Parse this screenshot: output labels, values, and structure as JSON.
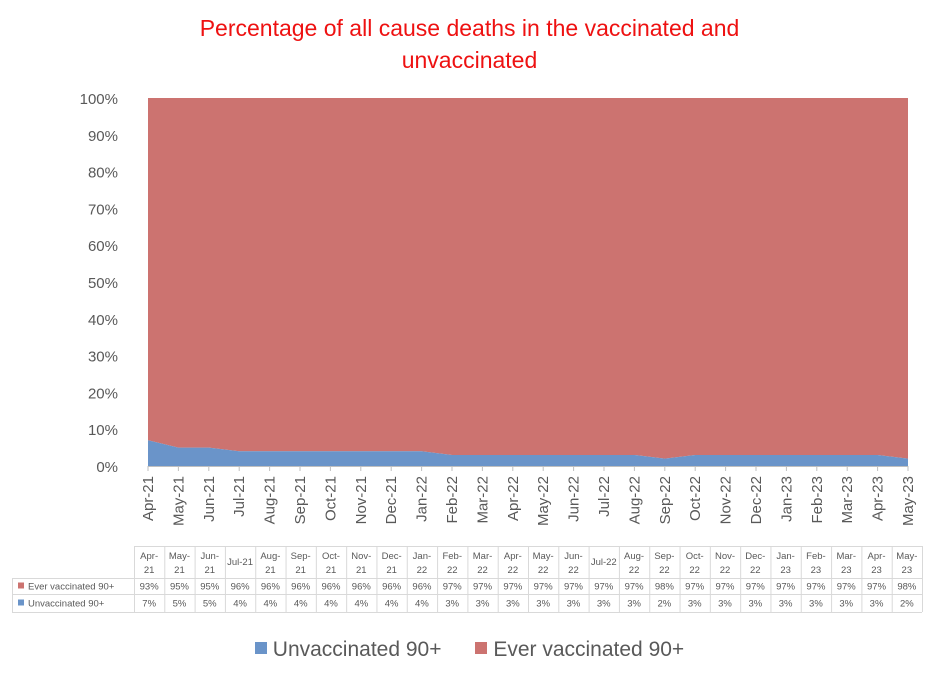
{
  "chart_data": {
    "type": "area",
    "stacked": true,
    "percent": true,
    "title": "Percentage of all cause deaths in the vaccinated and unvaccinated",
    "ylim": [
      0,
      100
    ],
    "y_ticks": [
      "0%",
      "10%",
      "20%",
      "30%",
      "40%",
      "50%",
      "60%",
      "70%",
      "80%",
      "90%",
      "100%"
    ],
    "categories": [
      "Apr-21",
      "May-21",
      "Jun-21",
      "Jul-21",
      "Aug-21",
      "Sep-21",
      "Oct-21",
      "Nov-21",
      "Dec-21",
      "Jan-22",
      "Feb-22",
      "Mar-22",
      "Apr-22",
      "May-22",
      "Jun-22",
      "Jul-22",
      "Aug-22",
      "Sep-22",
      "Oct-22",
      "Nov-22",
      "Dec-22",
      "Jan-23",
      "Feb-23",
      "Mar-23",
      "Apr-23",
      "May-23"
    ],
    "series": [
      {
        "name": "Unvaccinated 90+",
        "color": "#6a94c9",
        "values": [
          7,
          5,
          5,
          4,
          4,
          4,
          4,
          4,
          4,
          4,
          3,
          3,
          3,
          3,
          3,
          3,
          3,
          2,
          3,
          3,
          3,
          3,
          3,
          3,
          3,
          2
        ],
        "labels": [
          "7%",
          "5%",
          "5%",
          "4%",
          "4%",
          "4%",
          "4%",
          "4%",
          "4%",
          "4%",
          "3%",
          "3%",
          "3%",
          "3%",
          "3%",
          "3%",
          "3%",
          "2%",
          "3%",
          "3%",
          "3%",
          "3%",
          "3%",
          "3%",
          "3%",
          "2%"
        ]
      },
      {
        "name": "Ever vaccinated 90+",
        "color": "#cc7370",
        "values": [
          93,
          95,
          95,
          96,
          96,
          96,
          96,
          96,
          96,
          96,
          97,
          97,
          97,
          97,
          97,
          97,
          97,
          98,
          97,
          97,
          97,
          97,
          97,
          97,
          97,
          98
        ],
        "labels": [
          "93%",
          "95%",
          "95%",
          "96%",
          "96%",
          "96%",
          "96%",
          "96%",
          "96%",
          "96%",
          "97%",
          "97%",
          "97%",
          "97%",
          "97%",
          "97%",
          "97%",
          "98%",
          "97%",
          "97%",
          "97%",
          "97%",
          "97%",
          "97%",
          "97%",
          "98%"
        ]
      }
    ],
    "table": {
      "header_lines": [
        [
          "Apr-",
          "21"
        ],
        [
          "May-",
          "21"
        ],
        [
          "Jun-",
          "21"
        ],
        [
          "Jul-21",
          ""
        ],
        [
          "Aug-",
          "21"
        ],
        [
          "Sep-",
          "21"
        ],
        [
          "Oct-",
          "21"
        ],
        [
          "Nov-",
          "21"
        ],
        [
          "Dec-",
          "21"
        ],
        [
          "Jan-",
          "22"
        ],
        [
          "Feb-",
          "22"
        ],
        [
          "Mar-",
          "22"
        ],
        [
          "Apr-",
          "22"
        ],
        [
          "May-",
          "22"
        ],
        [
          "Jun-",
          "22"
        ],
        [
          "Jul-22",
          ""
        ],
        [
          "Aug-",
          "22"
        ],
        [
          "Sep-",
          "22"
        ],
        [
          "Oct-",
          "22"
        ],
        [
          "Nov-",
          "22"
        ],
        [
          "Dec-",
          "22"
        ],
        [
          "Jan-",
          "23"
        ],
        [
          "Feb-",
          "23"
        ],
        [
          "Mar-",
          "23"
        ],
        [
          "Apr-",
          "23"
        ],
        [
          "May-",
          "23"
        ]
      ],
      "row_order": [
        1,
        0
      ]
    },
    "legend_position": "bottom",
    "grid": false
  }
}
